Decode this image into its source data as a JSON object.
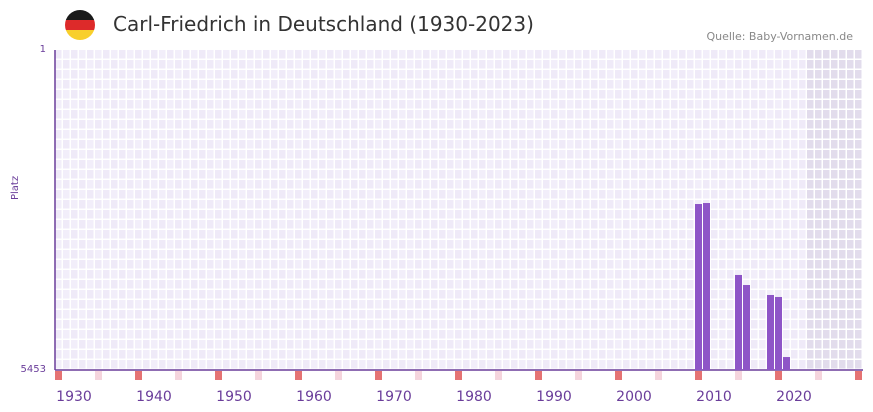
{
  "title": "Carl-Friedrich in Deutschland (1930-2023)",
  "source": "Quelle: Baby-Vornamen.de",
  "colors": {
    "bar": "#8e55c7",
    "axis": "#6a3d9a",
    "grid_bg": "#efeaf8",
    "shade": "#e2dcec",
    "marker": "#e57373",
    "marker_light": "#f5d5dd"
  },
  "chart_data": {
    "type": "bar",
    "title": "Carl-Friedrich in Deutschland (1930-2023)",
    "xlabel": "",
    "ylabel": "Platz",
    "xlim": [
      1928,
      2028
    ],
    "ylim": [
      5453,
      1
    ],
    "yticks": [
      "1",
      "5453"
    ],
    "xticks": [
      "1930",
      "1940",
      "1950",
      "1960",
      "1970",
      "1980",
      "1990",
      "2000",
      "2010",
      "2020"
    ],
    "x": [
      2008,
      2009,
      2013,
      2014,
      2017,
      2018,
      2019
    ],
    "values": [
      2625,
      2608,
      3834,
      4005,
      4175,
      4209,
      5232
    ]
  }
}
